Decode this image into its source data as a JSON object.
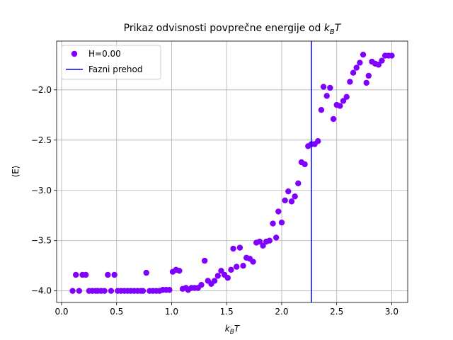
{
  "chart_data": {
    "type": "scatter",
    "title": [
      "Prikaz odvisnosti povprečne energije od",
      "k",
      "B",
      "T"
    ],
    "x_label": [
      "k",
      "B",
      "T"
    ],
    "y_label": "⟨E⟩",
    "xlim": [
      -0.045,
      3.145
    ],
    "ylim": [
      -4.115,
      -1.515
    ],
    "xticks": [
      {
        "value": 0,
        "label": "0.0"
      },
      {
        "value": 0.5,
        "label": "0.5"
      },
      {
        "value": 1,
        "label": "1.0"
      },
      {
        "value": 1.5,
        "label": "1.5"
      },
      {
        "value": 2,
        "label": "2.0"
      },
      {
        "value": 2.5,
        "label": "2.5"
      },
      {
        "value": 3,
        "label": "3.0"
      }
    ],
    "yticks": [
      {
        "value": -4,
        "label": "−4.0"
      },
      {
        "value": -3.5,
        "label": "−3.5"
      },
      {
        "value": -3,
        "label": "−3.0"
      },
      {
        "value": -2.5,
        "label": "−2.5"
      },
      {
        "value": -2,
        "label": "−2.0"
      }
    ],
    "grid": true,
    "legend": "upper left",
    "x": [
      0.1,
      0.13,
      0.16,
      0.19,
      0.22,
      0.25,
      0.28,
      0.31,
      0.33,
      0.36,
      0.39,
      0.42,
      0.45,
      0.48,
      0.51,
      0.54,
      0.57,
      0.6,
      0.63,
      0.66,
      0.69,
      0.72,
      0.74,
      0.77,
      0.8,
      0.83,
      0.86,
      0.89,
      0.92,
      0.95,
      0.98,
      1.01,
      1.04,
      1.07,
      1.1,
      1.13,
      1.15,
      1.18,
      1.21,
      1.24,
      1.27,
      1.3,
      1.33,
      1.36,
      1.39,
      1.42,
      1.45,
      1.48,
      1.51,
      1.54,
      1.56,
      1.59,
      1.62,
      1.65,
      1.68,
      1.71,
      1.74,
      1.77,
      1.8,
      1.83,
      1.86,
      1.89,
      1.92,
      1.95,
      1.97,
      2.0,
      2.03,
      2.06,
      2.09,
      2.12,
      2.15,
      2.18,
      2.21,
      2.24,
      2.27,
      2.3,
      2.33,
      2.36,
      2.38,
      2.41,
      2.44,
      2.47,
      2.5,
      2.53,
      2.56,
      2.59,
      2.62,
      2.65,
      2.68,
      2.71,
      2.74,
      2.77,
      2.79,
      2.82,
      2.85,
      2.88,
      2.91,
      2.94,
      2.97,
      3.0
    ],
    "series": [
      {
        "name": "H=0.00",
        "color": "#7f00ff",
        "values": [
          -4.0,
          -3.84,
          -4.0,
          -3.84,
          -3.84,
          -4.0,
          -4.0,
          -4.0,
          -4.0,
          -4.0,
          -4.0,
          -3.84,
          -4.0,
          -3.84,
          -4.0,
          -4.0,
          -4.0,
          -4.0,
          -4.0,
          -4.0,
          -4.0,
          -4.0,
          -4.0,
          -3.82,
          -4.0,
          -4.0,
          -4.0,
          -4.0,
          -3.99,
          -3.99,
          -3.99,
          -3.81,
          -3.79,
          -3.8,
          -3.98,
          -3.97,
          -3.99,
          -3.97,
          -3.97,
          -3.97,
          -3.94,
          -3.7,
          -3.9,
          -3.93,
          -3.9,
          -3.85,
          -3.8,
          -3.84,
          -3.87,
          -3.79,
          -3.58,
          -3.76,
          -3.57,
          -3.75,
          -3.67,
          -3.68,
          -3.71,
          -3.52,
          -3.51,
          -3.55,
          -3.51,
          -3.5,
          -3.33,
          -3.47,
          -3.21,
          -3.32,
          -3.1,
          -3.01,
          -3.11,
          -3.06,
          -2.93,
          -2.72,
          -2.74,
          -2.56,
          -2.54,
          -2.54,
          -2.51,
          -2.2,
          -1.97,
          -2.06,
          -1.98,
          -2.29,
          -2.15,
          -2.16,
          -2.11,
          -2.07,
          -1.92,
          -1.83,
          -1.78,
          -1.73,
          -1.65,
          -1.93,
          -1.86,
          -1.72,
          -1.74,
          -1.75,
          -1.71,
          -1.66,
          -1.66,
          -1.66
        ]
      }
    ],
    "vline": {
      "name": "Fazni prehod",
      "x": 2.27,
      "color": "#0000ff"
    }
  }
}
